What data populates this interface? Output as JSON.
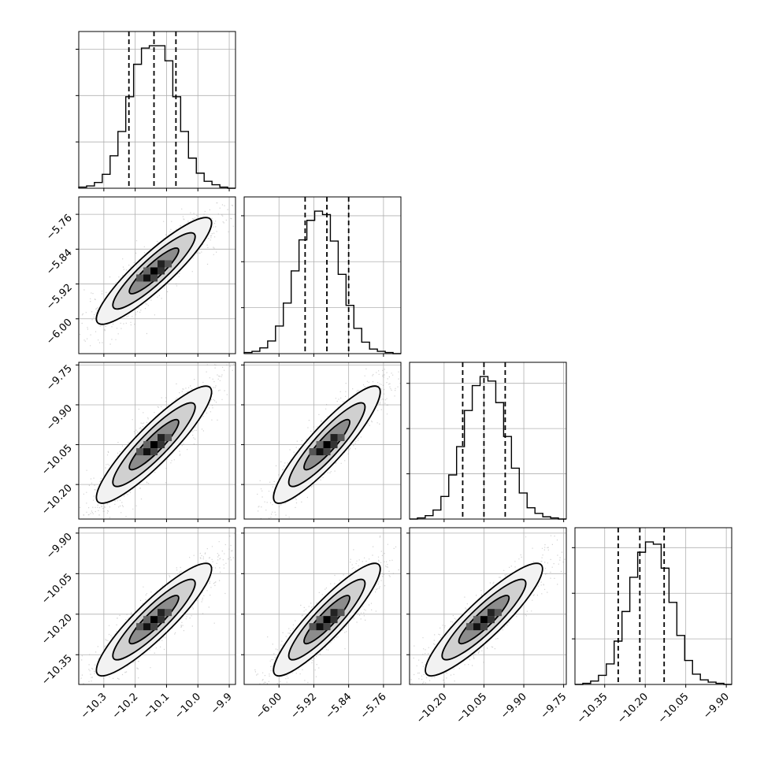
{
  "chart_data": {
    "type": "corner",
    "grid": true,
    "parameters": [
      {
        "range": [
          -10.38,
          -9.88
        ],
        "ticks": [
          -10.3,
          -10.2,
          -10.1,
          -10.0,
          -9.9
        ],
        "tick_labels": [
          "−10.3",
          "−10.2",
          "−10.1",
          "−10.0",
          "−9.9"
        ],
        "mean": -10.14,
        "sd": 0.075,
        "quantiles": [
          -10.22,
          -10.14,
          -10.07
        ]
      },
      {
        "range": [
          -6.08,
          -5.72
        ],
        "ticks": [
          -6.0,
          -5.92,
          -5.84,
          -5.76
        ],
        "tick_labels": [
          "−6.00",
          "−5.92",
          "−5.84",
          "−5.76"
        ],
        "mean": -5.89,
        "sd": 0.05,
        "quantiles": [
          -5.94,
          -5.89,
          -5.84
        ]
      },
      {
        "range": [
          -10.33,
          -9.74
        ],
        "ticks": [
          -10.2,
          -10.05,
          -9.9,
          -9.75
        ],
        "tick_labels": [
          "−10.20",
          "−10.05",
          "−9.90",
          "−9.75"
        ],
        "mean": -10.05,
        "sd": 0.09,
        "quantiles": [
          -10.13,
          -10.05,
          -9.97
        ]
      },
      {
        "range": [
          -10.46,
          -9.88
        ],
        "ticks": [
          -10.35,
          -10.2,
          -10.05,
          -9.9
        ],
        "tick_labels": [
          "−10.35",
          "−10.20",
          "−10.05",
          "−9.90"
        ],
        "mean": -10.22,
        "sd": 0.085,
        "quantiles": [
          -10.3,
          -10.22,
          -10.13
        ]
      }
    ],
    "histograms": [
      [
        1,
        2,
        5,
        12,
        28,
        49,
        79,
        107,
        121,
        123,
        123,
        110,
        79,
        49,
        26,
        13,
        6,
        3,
        1,
        0
      ],
      [
        1,
        2,
        5,
        11,
        24,
        44,
        72,
        99,
        116,
        124,
        121,
        98,
        69,
        42,
        22,
        10,
        4,
        2,
        1,
        0
      ],
      [
        0,
        1,
        3,
        8,
        20,
        39,
        64,
        96,
        118,
        126,
        122,
        103,
        73,
        45,
        23,
        10,
        5,
        2,
        1,
        0
      ],
      [
        0,
        1,
        3,
        8,
        18,
        38,
        64,
        94,
        116,
        125,
        123,
        102,
        72,
        43,
        21,
        9,
        4,
        2,
        1,
        0
      ]
    ]
  }
}
